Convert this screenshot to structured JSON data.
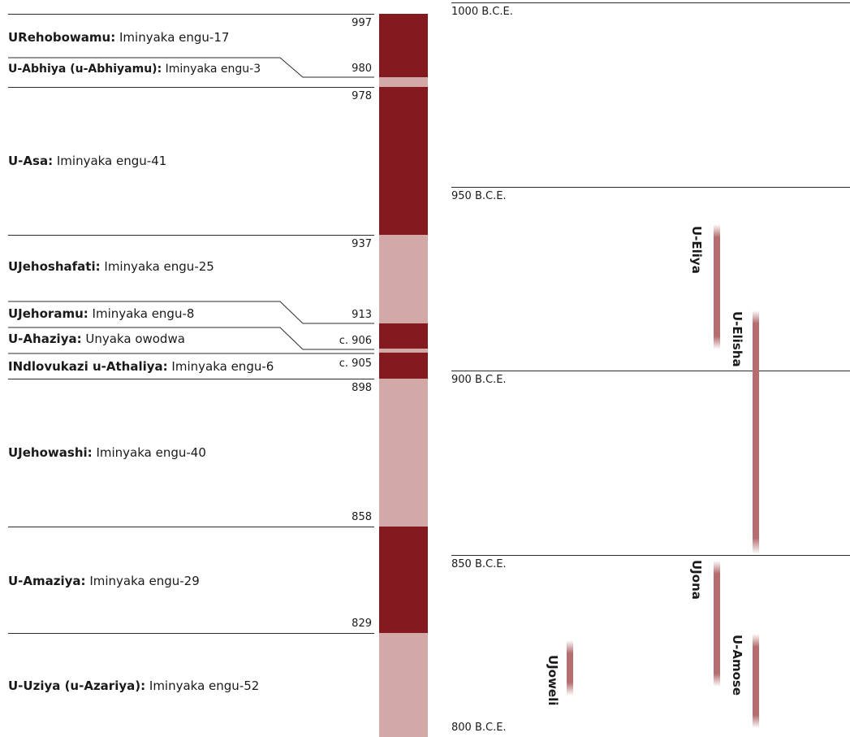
{
  "colors": {
    "dark_segment": "#841a20",
    "light_segment": "#d3a9a8",
    "prophet_bar": "#b56d6f",
    "line": "#2b2b2b"
  },
  "reigns": [
    {
      "name": "URehobowamu:",
      "duration": "Iminyaka engu-17",
      "start_label": "997"
    },
    {
      "name": "U-Abhiya (u-Abhiyamu):",
      "duration": "Iminyaka engu-3",
      "start_label": "980"
    },
    {
      "name": "U-Asa:",
      "duration": "Iminyaka engu-41",
      "start_label": "978"
    },
    {
      "name": "UJehoshafati:",
      "duration": "Iminyaka engu-25",
      "start_label": "937"
    },
    {
      "name": "UJehoramu:",
      "duration": "Iminyaka engu-8",
      "start_label": "913"
    },
    {
      "name": "U-Ahaziya:",
      "duration": "Unyaka owodwa",
      "start_label": "c. 906"
    },
    {
      "name": "INdlovukazi u-Athaliya:",
      "duration": "Iminyaka engu-6",
      "start_label": "c. 905"
    },
    {
      "name": "UJehowashi:",
      "duration": "Iminyaka engu-40",
      "start_label": "898"
    },
    {
      "name": "U-Amaziya:",
      "duration": "Iminyaka engu-29",
      "start_label": "858"
    },
    {
      "name": "U-Uziya (u-Azariya):",
      "duration": "Iminyaka engu-52",
      "start_label": "829"
    }
  ],
  "era_labels": [
    "1000 B.C.E.",
    "950 B.C.E.",
    "900 B.C.E.",
    "850 B.C.E.",
    "800 B.C.E."
  ],
  "prophets": [
    {
      "name": "U-Eliya"
    },
    {
      "name": "U-Elisha"
    },
    {
      "name": "UJona"
    },
    {
      "name": "U-Amose"
    },
    {
      "name": "UJoweli"
    }
  ]
}
